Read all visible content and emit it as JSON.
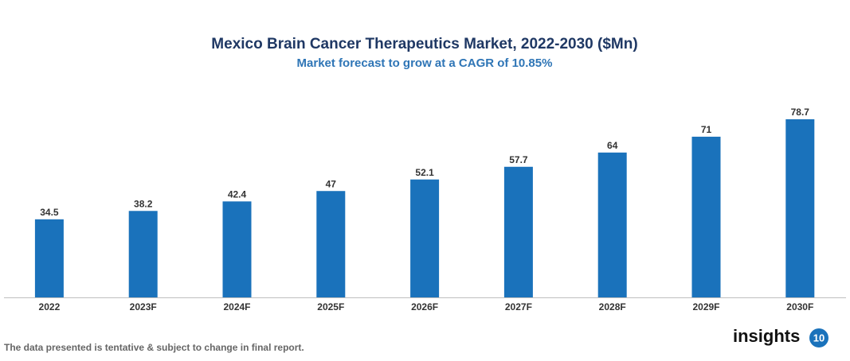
{
  "chart_data": {
    "type": "bar",
    "title": "Mexico Brain Cancer Therapeutics Market, 2022-2030 ($Mn)",
    "subtitle": "Market forecast to grow at a CAGR of 10.85%",
    "categories": [
      "2022",
      "2023F",
      "2024F",
      "2025F",
      "2026F",
      "2027F",
      "2028F",
      "2029F",
      "2030F"
    ],
    "values": [
      34.5,
      38.2,
      42.4,
      47,
      52.1,
      57.7,
      64,
      71,
      78.7
    ],
    "color": "#1a72bb",
    "note": "The data presented is tentative & subject to change in final report.",
    "brand": "insights",
    "brand_badge": "10"
  }
}
